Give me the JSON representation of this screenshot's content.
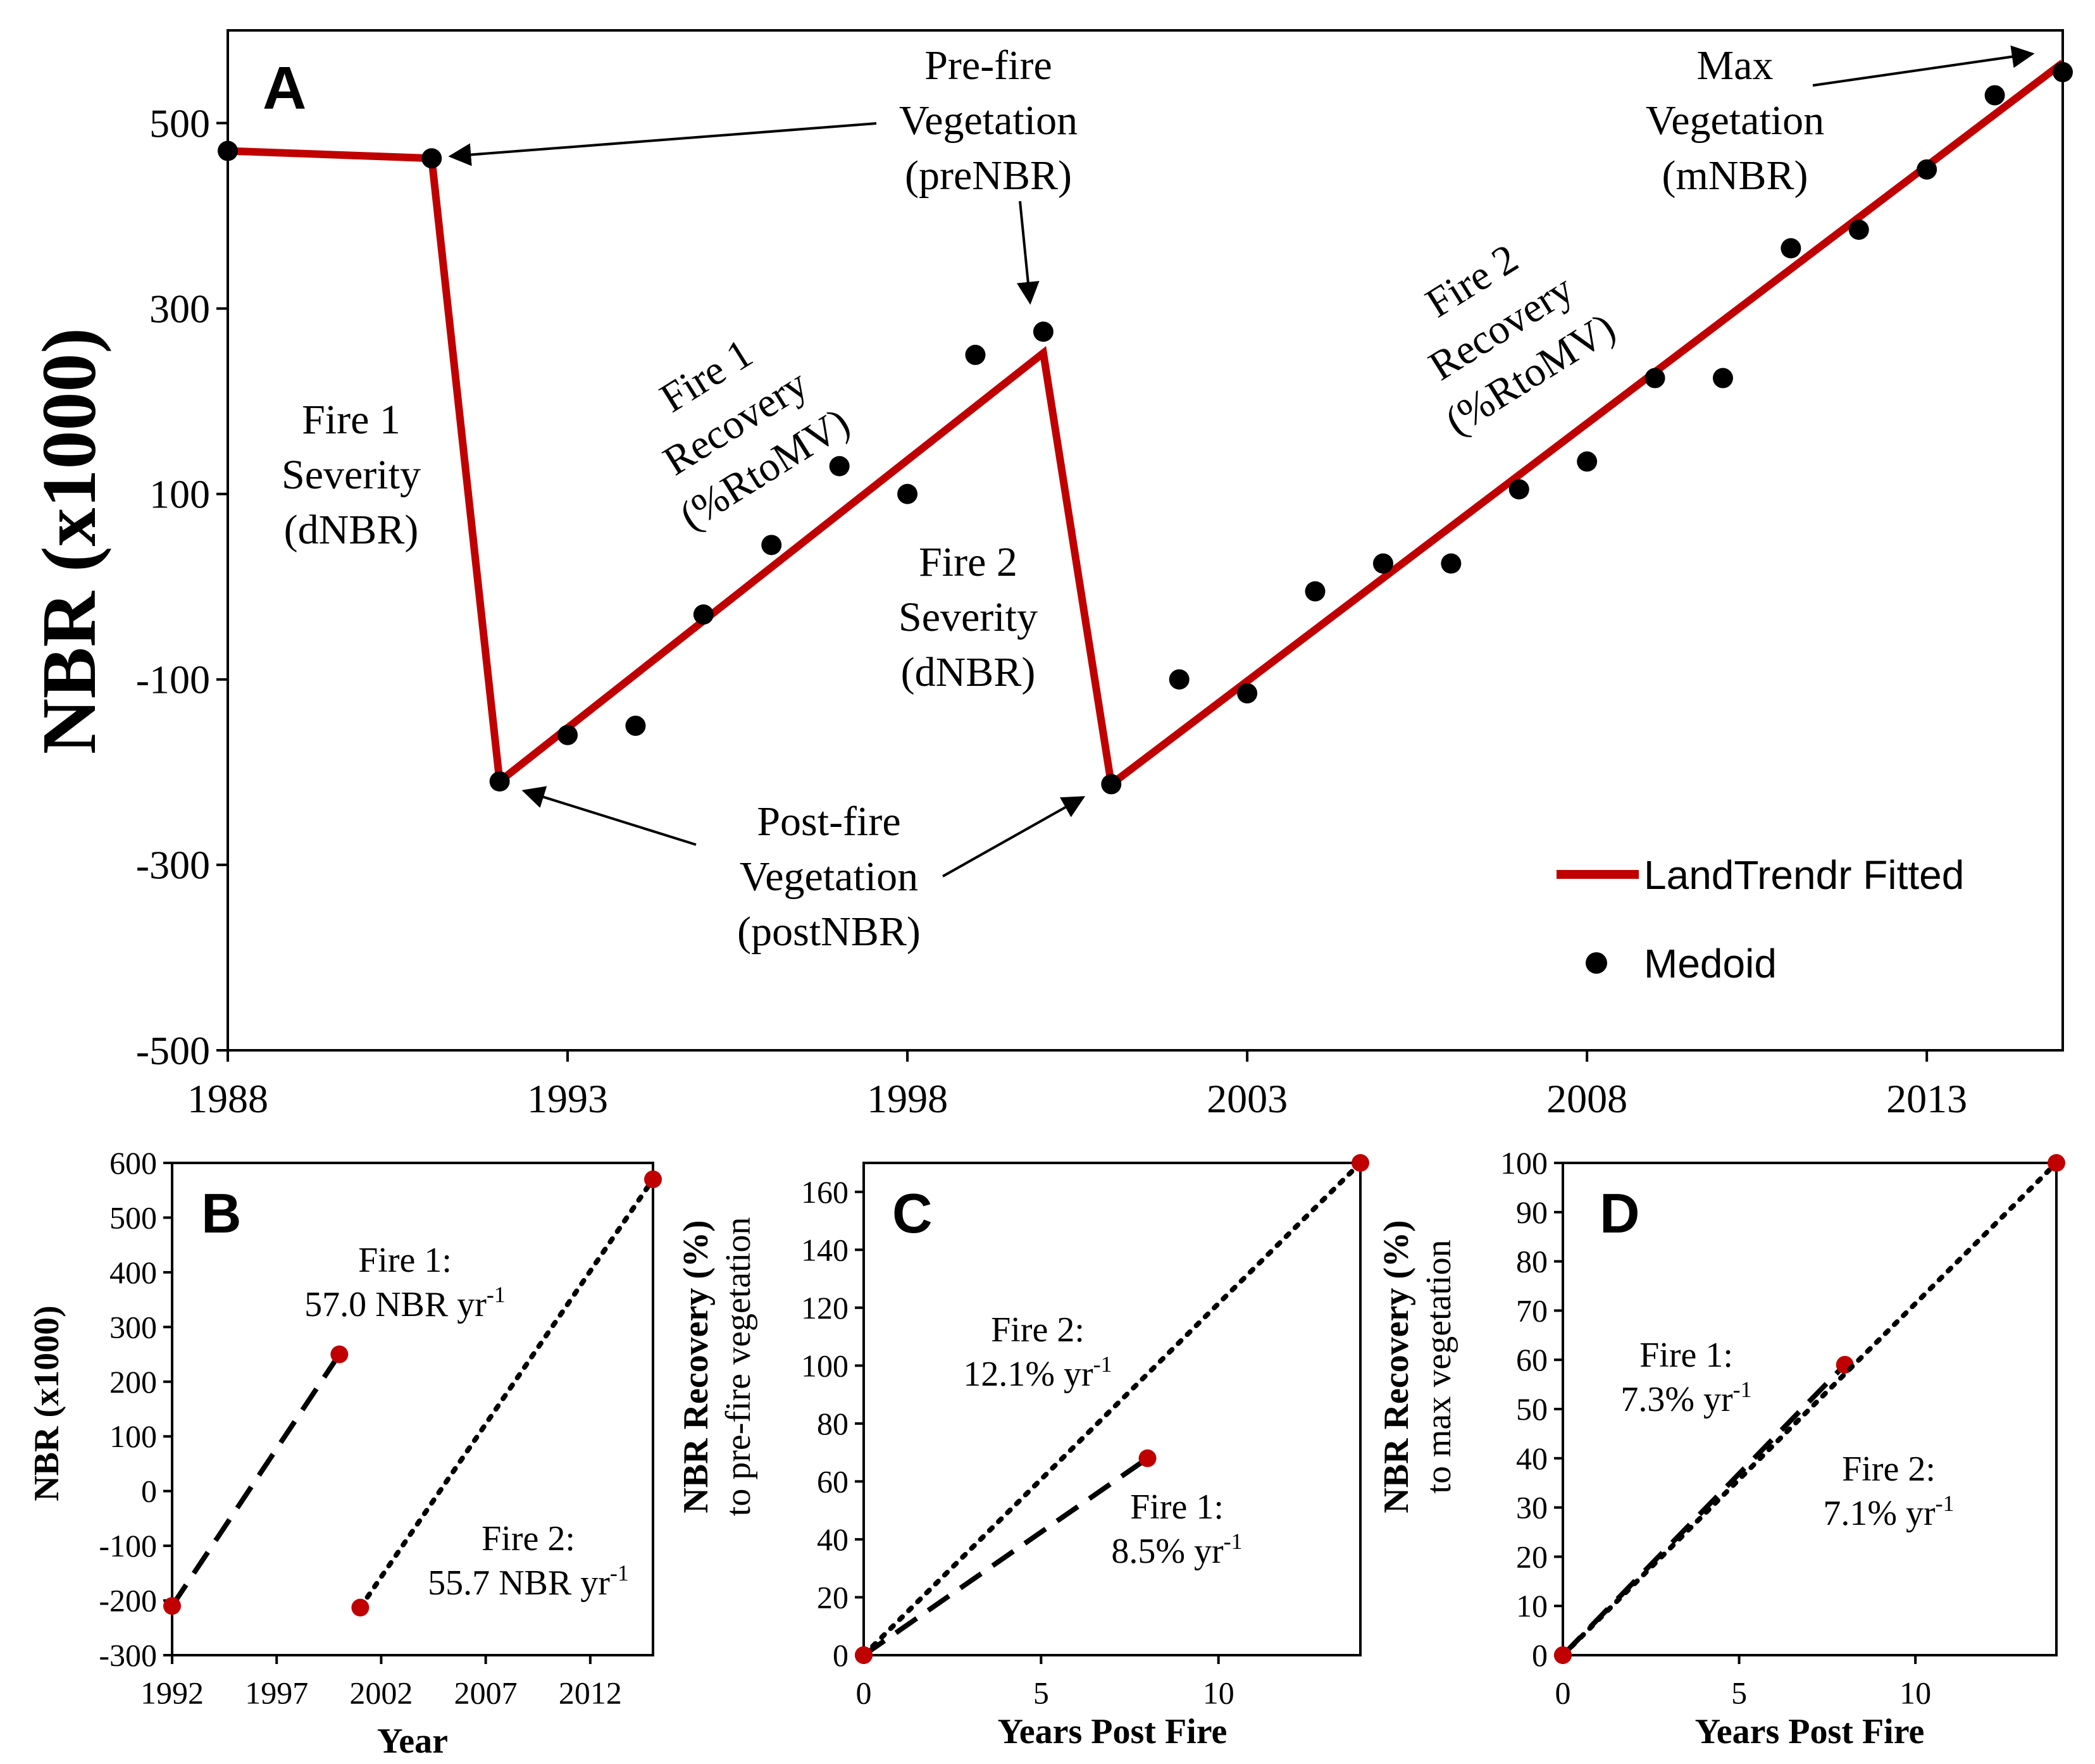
{
  "colors": {
    "fit": "#c00000",
    "dot": "#000000",
    "axis": "#000000",
    "endpoint": "#c00000"
  },
  "chart_data": [
    {
      "panel": "A",
      "type": "line",
      "ylabel": "NBR (x1000)",
      "xlim": [
        1988,
        2015
      ],
      "ylim": [
        -500,
        600
      ],
      "xticks": [
        1988,
        1993,
        1998,
        2003,
        2008,
        2013
      ],
      "yticks": [
        500,
        300,
        100,
        -100,
        -300,
        -500
      ],
      "series": [
        {
          "name": "LandTrendr Fitted",
          "kind": "line",
          "x": [
            1988,
            1991,
            1992,
            2000,
            2001,
            2015
          ],
          "y": [
            470,
            462,
            -210,
            252,
            -213,
            565
          ]
        },
        {
          "name": "Medoid",
          "kind": "points",
          "x": [
            1988,
            1991,
            1992,
            1993,
            1994,
            1995,
            1996,
            1997,
            1998,
            1999,
            2000,
            2001,
            2002,
            2003,
            2004,
            2005,
            2006,
            2007,
            2008,
            2009,
            2010,
            2011,
            2012,
            2013,
            2014,
            2015
          ],
          "y": [
            470,
            462,
            -210,
            -160,
            -150,
            -30,
            45,
            130,
            100,
            250,
            275,
            -213,
            -100,
            -115,
            -5,
            25,
            25,
            105,
            135,
            225,
            225,
            365,
            385,
            450,
            530,
            555
          ]
        }
      ],
      "legend": {
        "position": "bottom-right",
        "entries": [
          "LandTrendr Fitted",
          "Medoid"
        ]
      },
      "annotations": {
        "preNBR": [
          "Pre-fire",
          "Vegetation",
          "(preNBR)"
        ],
        "mNBR": [
          "Max",
          "Vegetation",
          "(mNBR)"
        ],
        "postNBR": [
          "Post-fire",
          "Vegetation",
          "(postNBR)"
        ],
        "fire1_severity": [
          "Fire 1",
          "Severity",
          "(dNBR)"
        ],
        "fire2_severity": [
          "Fire 2",
          "Severity",
          "(dNBR)"
        ],
        "fire1_recovery": [
          "Fire 1",
          "Recovery",
          "(%RtoMV)"
        ],
        "fire2_recovery": [
          "Fire 2",
          "Recovery",
          "(%RtoMV)"
        ]
      }
    },
    {
      "panel": "B",
      "type": "line",
      "xlabel": "Year",
      "ylabel": "NBR (x1000)",
      "xlim": [
        1992,
        2015
      ],
      "ylim": [
        -300,
        600
      ],
      "xticks": [
        1992,
        1997,
        2002,
        2007,
        2012
      ],
      "yticks": [
        600,
        500,
        400,
        300,
        200,
        100,
        0,
        -100,
        -200,
        -300
      ],
      "series": [
        {
          "name": "Fire 1",
          "style": "dashed",
          "x": [
            1992,
            2000
          ],
          "y": [
            -210,
            250
          ]
        },
        {
          "name": "Fire 2",
          "style": "dotted",
          "x": [
            2001,
            2015
          ],
          "y": [
            -213,
            570
          ]
        }
      ],
      "labels": {
        "fire1": {
          "line1": "Fire 1:",
          "value": "57.0 NBR yr",
          "sup": "-1"
        },
        "fire2": {
          "line1": "Fire 2:",
          "value": "55.7 NBR yr",
          "sup": "-1"
        }
      }
    },
    {
      "panel": "C",
      "type": "line",
      "xlabel": "Years Post Fire",
      "ylabel": "NBR Recovery (%)",
      "ylabel2": "to pre-fire vegetation",
      "xlim": [
        0,
        14
      ],
      "ylim": [
        0,
        170
      ],
      "xticks": [
        0,
        5,
        10
      ],
      "yticks": [
        160,
        140,
        120,
        100,
        80,
        60,
        40,
        20,
        0
      ],
      "series": [
        {
          "name": "Fire 1",
          "style": "dashed",
          "x": [
            0,
            8
          ],
          "y": [
            0,
            68
          ]
        },
        {
          "name": "Fire 2",
          "style": "dotted",
          "x": [
            0,
            14
          ],
          "y": [
            0,
            170
          ]
        }
      ],
      "labels": {
        "fire1": {
          "line1": "Fire 1:",
          "value": "8.5% yr",
          "sup": "-1"
        },
        "fire2": {
          "line1": "Fire 2:",
          "value": "12.1% yr",
          "sup": "-1"
        }
      }
    },
    {
      "panel": "D",
      "type": "line",
      "xlabel": "Years Post Fire",
      "ylabel": "NBR Recovery (%)",
      "ylabel2": "to max vegetation",
      "xlim": [
        0,
        14
      ],
      "ylim": [
        0,
        100
      ],
      "xticks": [
        0,
        5,
        10
      ],
      "yticks": [
        100,
        90,
        80,
        70,
        60,
        50,
        40,
        30,
        20,
        10,
        0
      ],
      "series": [
        {
          "name": "Fire 1",
          "style": "dashed",
          "x": [
            0,
            8
          ],
          "y": [
            0,
            59
          ]
        },
        {
          "name": "Fire 2",
          "style": "dotted",
          "x": [
            0,
            14
          ],
          "y": [
            0,
            100
          ]
        }
      ],
      "labels": {
        "fire1": {
          "line1": "Fire 1:",
          "value": "7.3% yr",
          "sup": "-1"
        },
        "fire2": {
          "line1": "Fire 2:",
          "value": "7.1% yr",
          "sup": "-1"
        }
      }
    }
  ]
}
